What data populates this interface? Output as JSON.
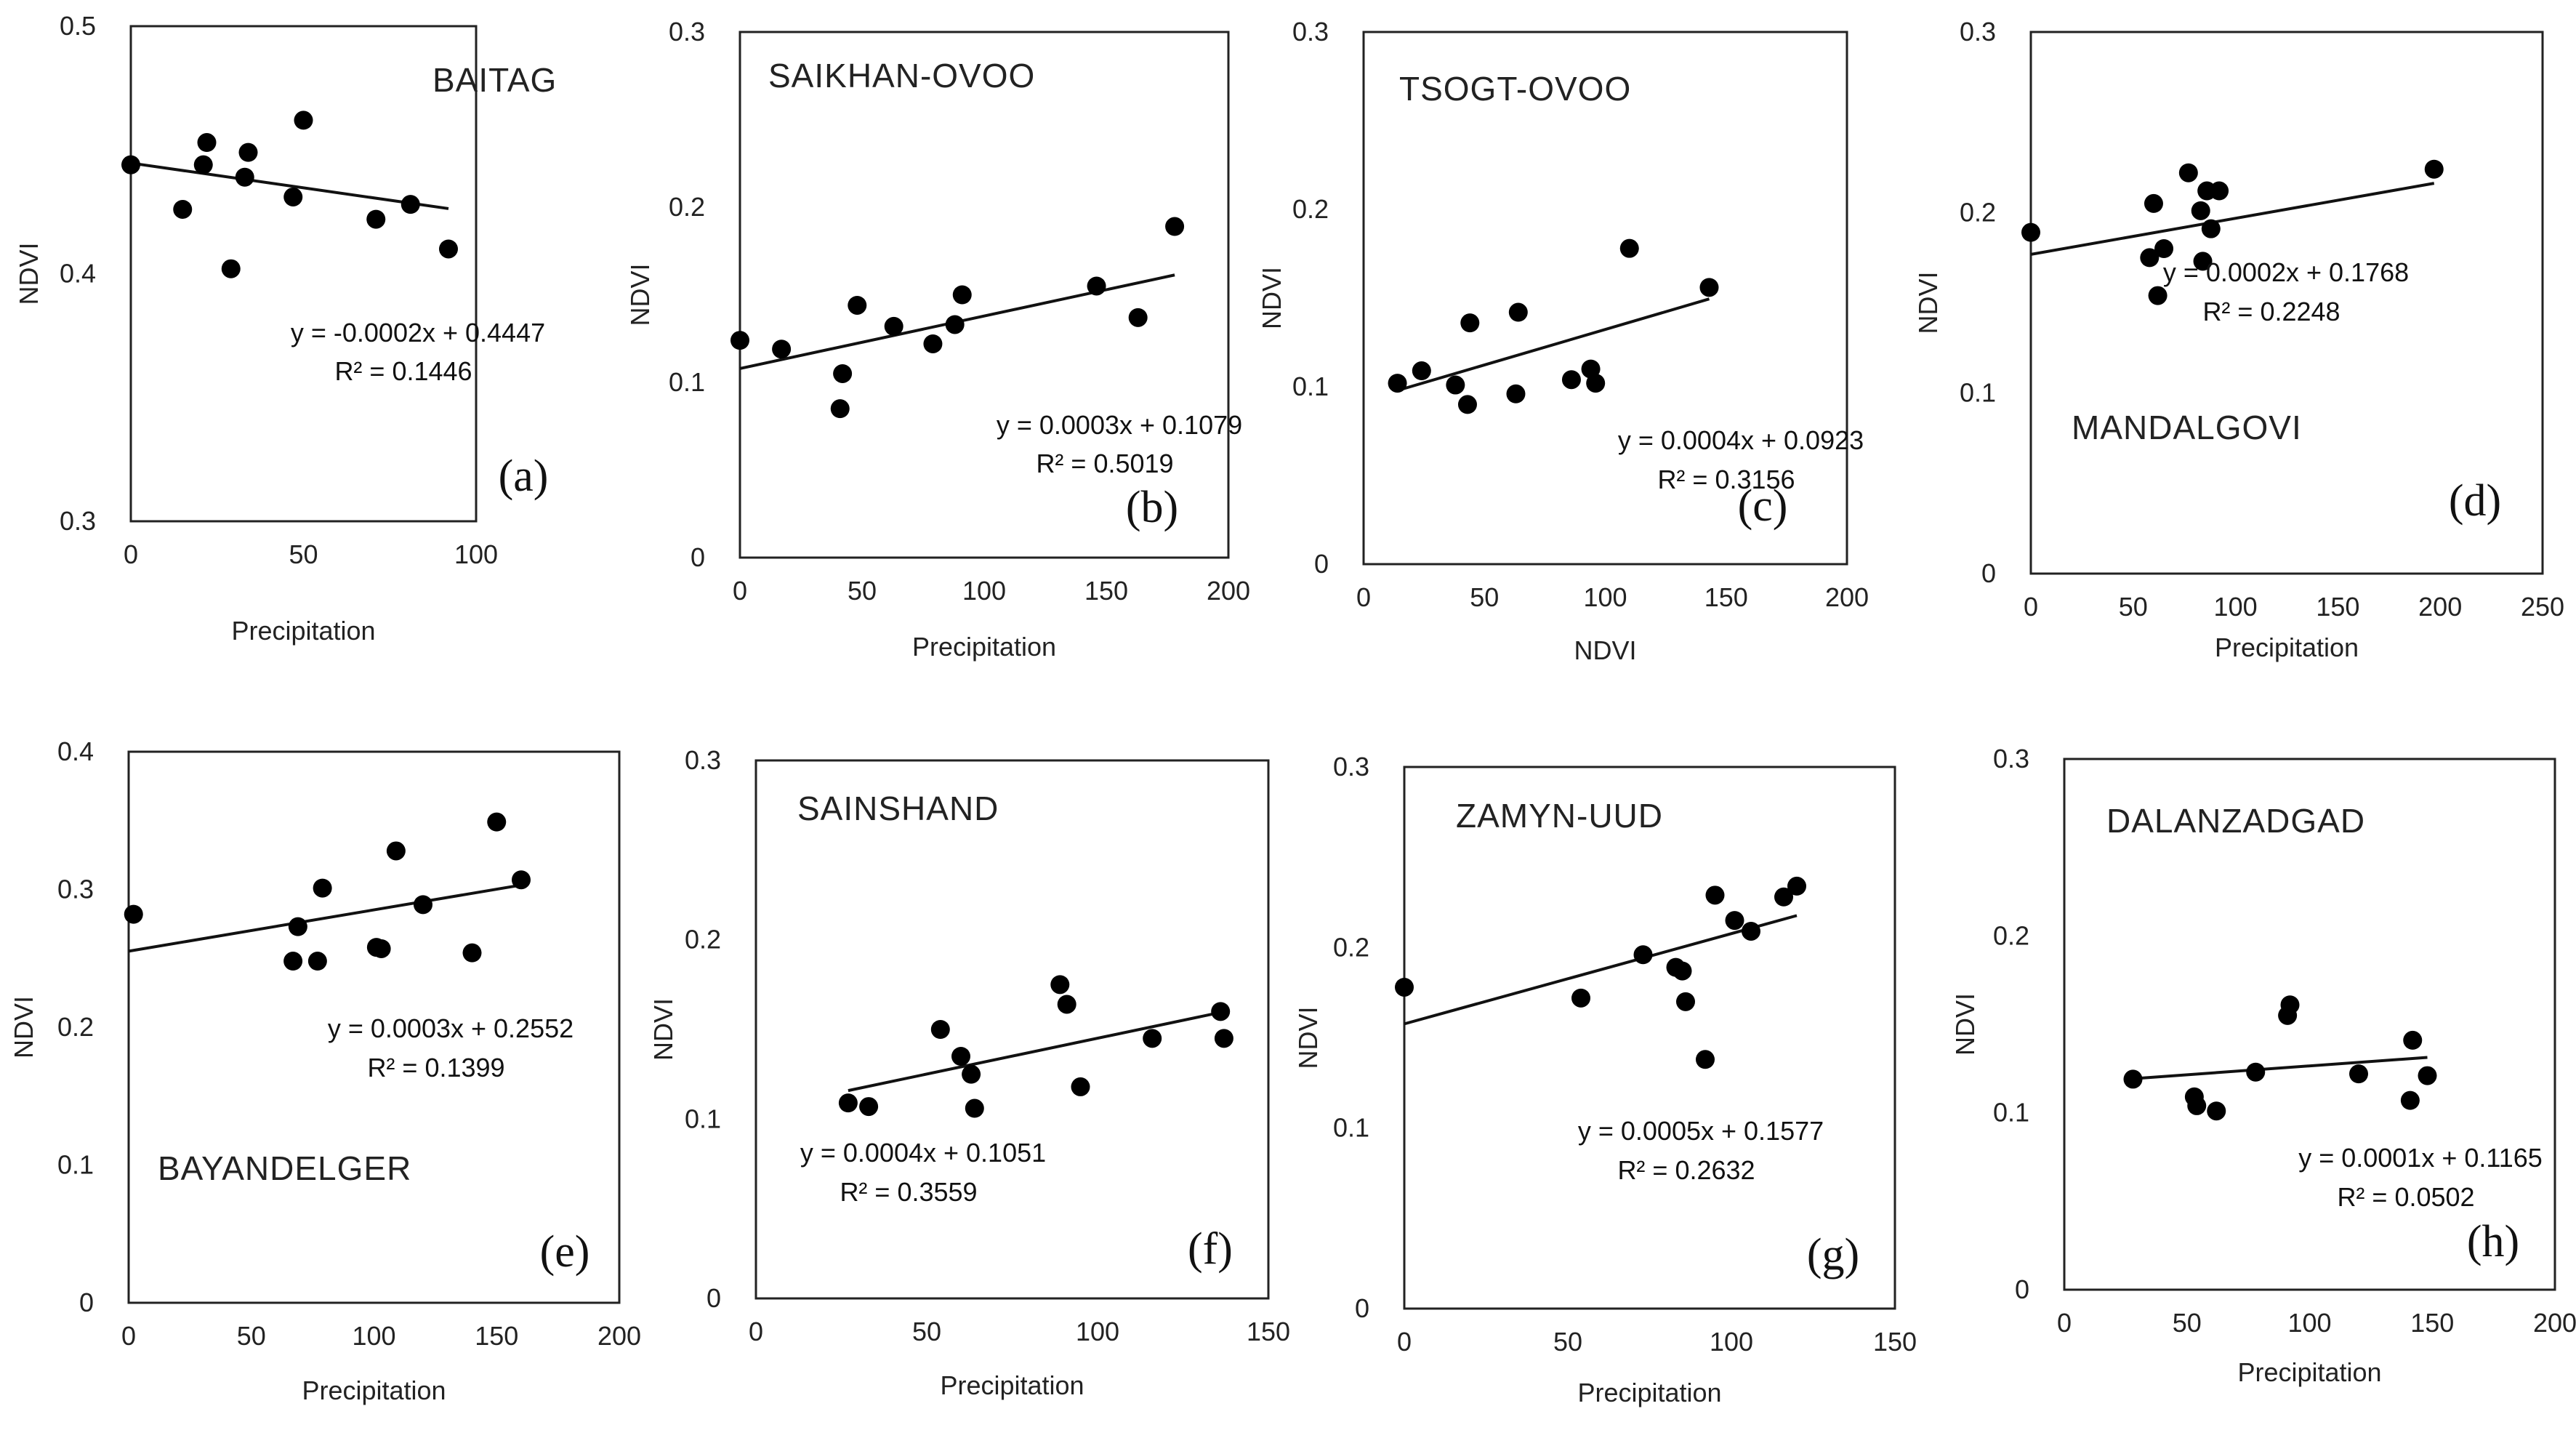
{
  "chart_data": [
    {
      "type": "scatter",
      "panel": "(a)",
      "station": "BAITAG",
      "xlabel": "Precipitation",
      "ylabel": "NDVI",
      "xlim": [
        0,
        100
      ],
      "ylim": [
        0.3,
        0.5
      ],
      "xticks": [
        "0",
        "50",
        "100"
      ],
      "yticks": [
        "0.3",
        "0.4",
        "0.5"
      ],
      "x": [
        0,
        15,
        21,
        22,
        29,
        33,
        34,
        47,
        50,
        71,
        81,
        92
      ],
      "y": [
        0.444,
        0.426,
        0.444,
        0.453,
        0.402,
        0.439,
        0.449,
        0.431,
        0.462,
        0.422,
        0.428,
        0.41
      ],
      "equation": "y = -0.0002x + 0.4447",
      "r2": "R² = 0.1446",
      "slope": -0.0002,
      "intercept": 0.4447,
      "trend_x": [
        0,
        92
      ]
    },
    {
      "type": "scatter",
      "panel": "(b)",
      "station": "SAIKHAN-OVOO",
      "xlabel": "Precipitation",
      "ylabel": "NDVI",
      "xlim": [
        0,
        200
      ],
      "ylim": [
        0,
        0.3
      ],
      "xticks": [
        "0",
        "50",
        "100",
        "150",
        "200"
      ],
      "yticks": [
        "0",
        "0.1",
        "0.2",
        "0.3"
      ],
      "x": [
        0,
        17,
        41,
        42,
        48,
        63,
        79,
        88,
        91,
        146,
        163,
        178
      ],
      "y": [
        0.124,
        0.119,
        0.085,
        0.105,
        0.144,
        0.132,
        0.122,
        0.133,
        0.15,
        0.155,
        0.137,
        0.189
      ],
      "equation": "y = 0.0003x + 0.1079",
      "r2": "R² = 0.5019",
      "slope": 0.0003,
      "intercept": 0.1079,
      "trend_x": [
        0,
        178
      ]
    },
    {
      "type": "scatter",
      "panel": "(c)",
      "station": "TSOGT-OVOO",
      "xlabel": "NDVI",
      "ylabel": "NDVI",
      "xlim": [
        0,
        200
      ],
      "ylim": [
        0,
        0.3
      ],
      "xticks": [
        "0",
        "50",
        "100",
        "150",
        "200"
      ],
      "yticks": [
        "0",
        "0.1",
        "0.2",
        "0.3"
      ],
      "x": [
        14,
        24,
        38,
        43,
        44,
        64,
        63,
        86,
        94,
        96,
        110,
        143
      ],
      "y": [
        0.102,
        0.109,
        0.101,
        0.09,
        0.136,
        0.142,
        0.096,
        0.104,
        0.11,
        0.102,
        0.178,
        0.156
      ],
      "equation": "y = 0.0004x + 0.0923",
      "r2": "R² = 0.3156",
      "slope": 0.0004,
      "intercept": 0.0923,
      "trend_x": [
        14,
        143
      ]
    },
    {
      "type": "scatter",
      "panel": "(d)",
      "station": "MANDALGOVI",
      "xlabel": "Precipitation",
      "ylabel": "NDVI",
      "xlim": [
        0,
        250
      ],
      "ylim": [
        0,
        0.3
      ],
      "xticks": [
        "0",
        "50",
        "100",
        "150",
        "200",
        "250"
      ],
      "yticks": [
        "0",
        "0.1",
        "0.2",
        "0.3"
      ],
      "x": [
        0,
        58,
        60,
        62,
        65,
        77,
        83,
        84,
        86,
        88,
        92,
        197
      ],
      "y": [
        0.189,
        0.175,
        0.205,
        0.154,
        0.18,
        0.222,
        0.201,
        0.173,
        0.212,
        0.191,
        0.212,
        0.224
      ],
      "equation": "y = 0.0002x + 0.1768",
      "r2": "R² = 0.2248",
      "slope": 0.0002,
      "intercept": 0.1768,
      "trend_x": [
        0,
        197
      ]
    },
    {
      "type": "scatter",
      "panel": "(e)",
      "station": "BAYANDELGER",
      "xlabel": "Precipitation",
      "ylabel": "NDVI",
      "xlim": [
        0,
        200
      ],
      "ylim": [
        0,
        0.4
      ],
      "xticks": [
        "0",
        "50",
        "100",
        "150",
        "200"
      ],
      "yticks": [
        "0",
        "0.1",
        "0.2",
        "0.3",
        "0.4"
      ],
      "x": [
        2,
        67,
        69,
        77,
        79,
        101,
        103,
        109,
        120,
        140,
        150,
        160
      ],
      "y": [
        0.282,
        0.248,
        0.273,
        0.248,
        0.301,
        0.258,
        0.257,
        0.328,
        0.289,
        0.254,
        0.349,
        0.307
      ],
      "equation": "y = 0.0003x + 0.2552",
      "r2": "R² = 0.1399",
      "slope": 0.0003,
      "intercept": 0.2552,
      "trend_x": [
        0,
        160
      ]
    },
    {
      "type": "scatter",
      "panel": "(f)",
      "station": "SAINSHAND",
      "xlabel": "Precipitation",
      "ylabel": "NDVI",
      "xlim": [
        0,
        150
      ],
      "ylim": [
        0,
        0.3
      ],
      "xticks": [
        "0",
        "50",
        "100",
        "150"
      ],
      "yticks": [
        "0",
        "0.1",
        "0.2",
        "0.3"
      ],
      "x": [
        27,
        33,
        54,
        60,
        63,
        64,
        89,
        91,
        95,
        116,
        136,
        137
      ],
      "y": [
        0.109,
        0.107,
        0.15,
        0.135,
        0.125,
        0.106,
        0.175,
        0.164,
        0.118,
        0.145,
        0.16,
        0.145
      ],
      "equation": "y = 0.0004x + 0.1051",
      "r2": "R² = 0.3559",
      "slope": 0.0004,
      "intercept": 0.1051,
      "trend_x": [
        27,
        137
      ]
    },
    {
      "type": "scatter",
      "panel": "(g)",
      "station": "ZAMYN-UUD",
      "xlabel": "Precipitation",
      "ylabel": "NDVI",
      "xlim": [
        0,
        150
      ],
      "ylim": [
        0,
        0.3
      ],
      "xticks": [
        "0",
        "50",
        "100",
        "150"
      ],
      "yticks": [
        "0",
        "0.1",
        "0.2",
        "0.3"
      ],
      "x": [
        0,
        54,
        73,
        83,
        85,
        86,
        92,
        95,
        101,
        106,
        116,
        120
      ],
      "y": [
        0.178,
        0.172,
        0.196,
        0.189,
        0.187,
        0.17,
        0.138,
        0.229,
        0.215,
        0.209,
        0.228,
        0.234
      ],
      "equation": "y = 0.0005x + 0.1577",
      "r2": "R² = 0.2632",
      "slope": 0.0005,
      "intercept": 0.1577,
      "trend_x": [
        0,
        120
      ]
    },
    {
      "type": "scatter",
      "panel": "(h)",
      "station": "DALANZADGAD",
      "xlabel": "Precipitation",
      "ylabel": "NDVI",
      "xlim": [
        0,
        200
      ],
      "ylim": [
        0,
        0.3
      ],
      "xticks": [
        "0",
        "50",
        "100",
        "150",
        "200"
      ],
      "yticks": [
        "0",
        "0.1",
        "0.2",
        "0.3"
      ],
      "x": [
        28,
        53,
        54,
        62,
        78,
        91,
        92,
        120,
        141,
        142,
        148
      ],
      "y": [
        0.119,
        0.109,
        0.104,
        0.101,
        0.123,
        0.155,
        0.161,
        0.122,
        0.107,
        0.141,
        0.121
      ],
      "equation": "y = 0.0001x + 0.1165",
      "r2": "R² = 0.0502",
      "slope": 0.0001,
      "intercept": 0.1165,
      "trend_x": [
        28,
        148
      ]
    }
  ]
}
